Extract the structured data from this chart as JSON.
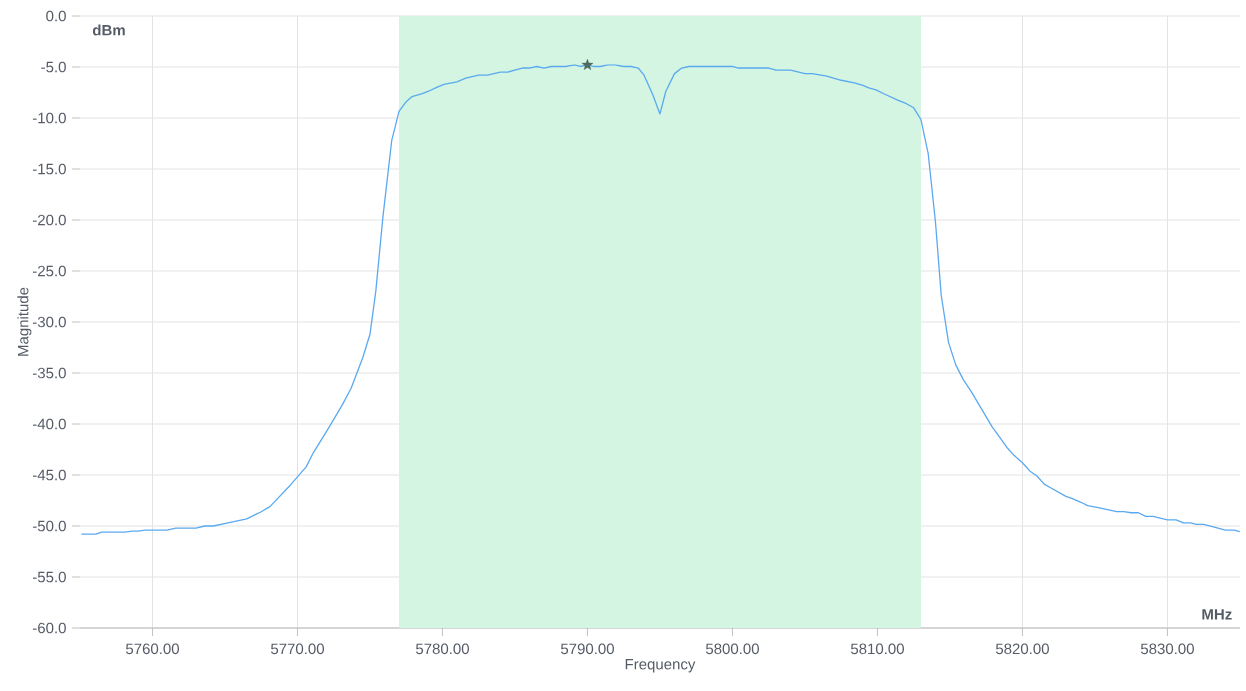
{
  "chart_data": {
    "type": "line",
    "xlabel": "Frequency",
    "ylabel": "Magnitude",
    "annotations": [
      "dBm",
      "MHz"
    ],
    "xlim": [
      5755,
      5835
    ],
    "ylim": [
      -60,
      0
    ],
    "xticks": [
      {
        "value": 5760,
        "label": "5760.00"
      },
      {
        "value": 5770,
        "label": "5770.00"
      },
      {
        "value": 5780,
        "label": "5780.00"
      },
      {
        "value": 5790,
        "label": "5790.00"
      },
      {
        "value": 5800,
        "label": "5800.00"
      },
      {
        "value": 5810,
        "label": "5810.00"
      },
      {
        "value": 5820,
        "label": "5820.00"
      },
      {
        "value": 5830,
        "label": "5830.00"
      }
    ],
    "yticks": [
      {
        "value": 0,
        "label": "0.0"
      },
      {
        "value": -5,
        "label": "-5.0"
      },
      {
        "value": -10,
        "label": "-10.0"
      },
      {
        "value": -15,
        "label": "-15.0"
      },
      {
        "value": -20,
        "label": "-20.0"
      },
      {
        "value": -25,
        "label": "-25.0"
      },
      {
        "value": -30,
        "label": "-30.0"
      },
      {
        "value": -35,
        "label": "-35.0"
      },
      {
        "value": -40,
        "label": "-40.0"
      },
      {
        "value": -45,
        "label": "-45.0"
      },
      {
        "value": -50,
        "label": "-50.0"
      },
      {
        "value": -55,
        "label": "-55.0"
      },
      {
        "value": -60,
        "label": "-60.0"
      }
    ],
    "grid": true,
    "bands": [
      {
        "axis": "x",
        "from": 5777,
        "to": 5813,
        "color": "#d3f5e1"
      }
    ],
    "series": [
      {
        "color": "#5aa9f0",
        "marker": "none",
        "x": [
          5755.1,
          5756.1,
          5756.5,
          5758.1,
          5758.6,
          5759.0,
          5759.5,
          5761.0,
          5761.6,
          5763.0,
          5763.6,
          5764.2,
          5765.2,
          5766.5,
          5767.5,
          5768.1,
          5769.5,
          5770.6,
          5771.1,
          5772.1,
          5773.1,
          5773.7,
          5774.5,
          5775.0,
          5775.4,
          5775.9,
          5776.5,
          5777.0,
          5777.5,
          5777.9,
          5778.6,
          5779.0,
          5779.6,
          5780.1,
          5781.0,
          5781.6,
          5782.5,
          5783.1,
          5784.0,
          5784.5,
          5785.5,
          5786.0,
          5786.5,
          5787.0,
          5787.5,
          5788.5,
          5789.1,
          5789.5,
          5790.0,
          5790.4,
          5790.9,
          5791.4,
          5791.9,
          5792.5,
          5793.0,
          5793.5,
          5793.9,
          5794.5,
          5795.0,
          5795.4,
          5796.0,
          5796.5,
          5797.0,
          5800.0,
          5800.4,
          5802.5,
          5803.0,
          5804.0,
          5805.0,
          5805.5,
          5806.5,
          5807.5,
          5808.4,
          5809.0,
          5809.4,
          5809.9,
          5810.4,
          5811.4,
          5812.0,
          5812.5,
          5813.0,
          5813.5,
          5814.0,
          5814.4,
          5814.9,
          5815.4,
          5815.9,
          5816.5,
          5817.4,
          5817.9,
          5818.4,
          5818.9,
          5819.4,
          5820.0,
          5820.5,
          5821.0,
          5821.5,
          5822.0,
          5823.0,
          5823.4,
          5824.0,
          5824.5,
          5825.4,
          5826.5,
          5827.0,
          5827.5,
          5828.0,
          5828.5,
          5829.0,
          5830.0,
          5830.6,
          5831.1,
          5831.6,
          5832.0,
          5832.5,
          5833.1,
          5834.0,
          5834.6,
          5835.0
        ],
        "values": [
          -50.8,
          -50.8,
          -50.6,
          -50.6,
          -50.5,
          -50.5,
          -50.4,
          -50.4,
          -50.2,
          -50.2,
          -50.0,
          -50.0,
          -49.7,
          -49.3,
          -48.6,
          -48.1,
          -46.0,
          -44.2,
          -42.8,
          -40.5,
          -38.1,
          -36.5,
          -33.5,
          -31.2,
          -27.0,
          -19.6,
          -12.2,
          -9.35,
          -8.4,
          -7.9,
          -7.6,
          -7.4,
          -7.0,
          -6.7,
          -6.45,
          -6.1,
          -5.8,
          -5.8,
          -5.5,
          -5.5,
          -5.1,
          -5.1,
          -4.95,
          -5.1,
          -4.95,
          -4.95,
          -4.8,
          -4.95,
          -4.8,
          -4.95,
          -4.95,
          -4.8,
          -4.8,
          -4.95,
          -4.95,
          -5.1,
          -5.8,
          -7.7,
          -9.6,
          -7.4,
          -5.65,
          -5.1,
          -4.95,
          -4.95,
          -5.1,
          -5.1,
          -5.3,
          -5.3,
          -5.65,
          -5.65,
          -5.9,
          -6.3,
          -6.55,
          -6.8,
          -7.05,
          -7.25,
          -7.6,
          -8.25,
          -8.6,
          -9.0,
          -10.15,
          -13.5,
          -20.2,
          -27.4,
          -32.0,
          -34.2,
          -35.6,
          -36.9,
          -39.05,
          -40.25,
          -41.25,
          -42.25,
          -43.05,
          -43.8,
          -44.6,
          -45.1,
          -45.9,
          -46.3,
          -47.1,
          -47.3,
          -47.65,
          -48.0,
          -48.25,
          -48.6,
          -48.6,
          -48.7,
          -48.7,
          -49.05,
          -49.05,
          -49.4,
          -49.4,
          -49.7,
          -49.7,
          -49.85,
          -49.85,
          -50.05,
          -50.4,
          -50.4,
          -50.55
        ]
      },
      {
        "type": "scatter",
        "color": "#4d6b5e",
        "marker": "star",
        "x": [
          5790.0
        ],
        "values": [
          -4.8
        ]
      }
    ]
  }
}
